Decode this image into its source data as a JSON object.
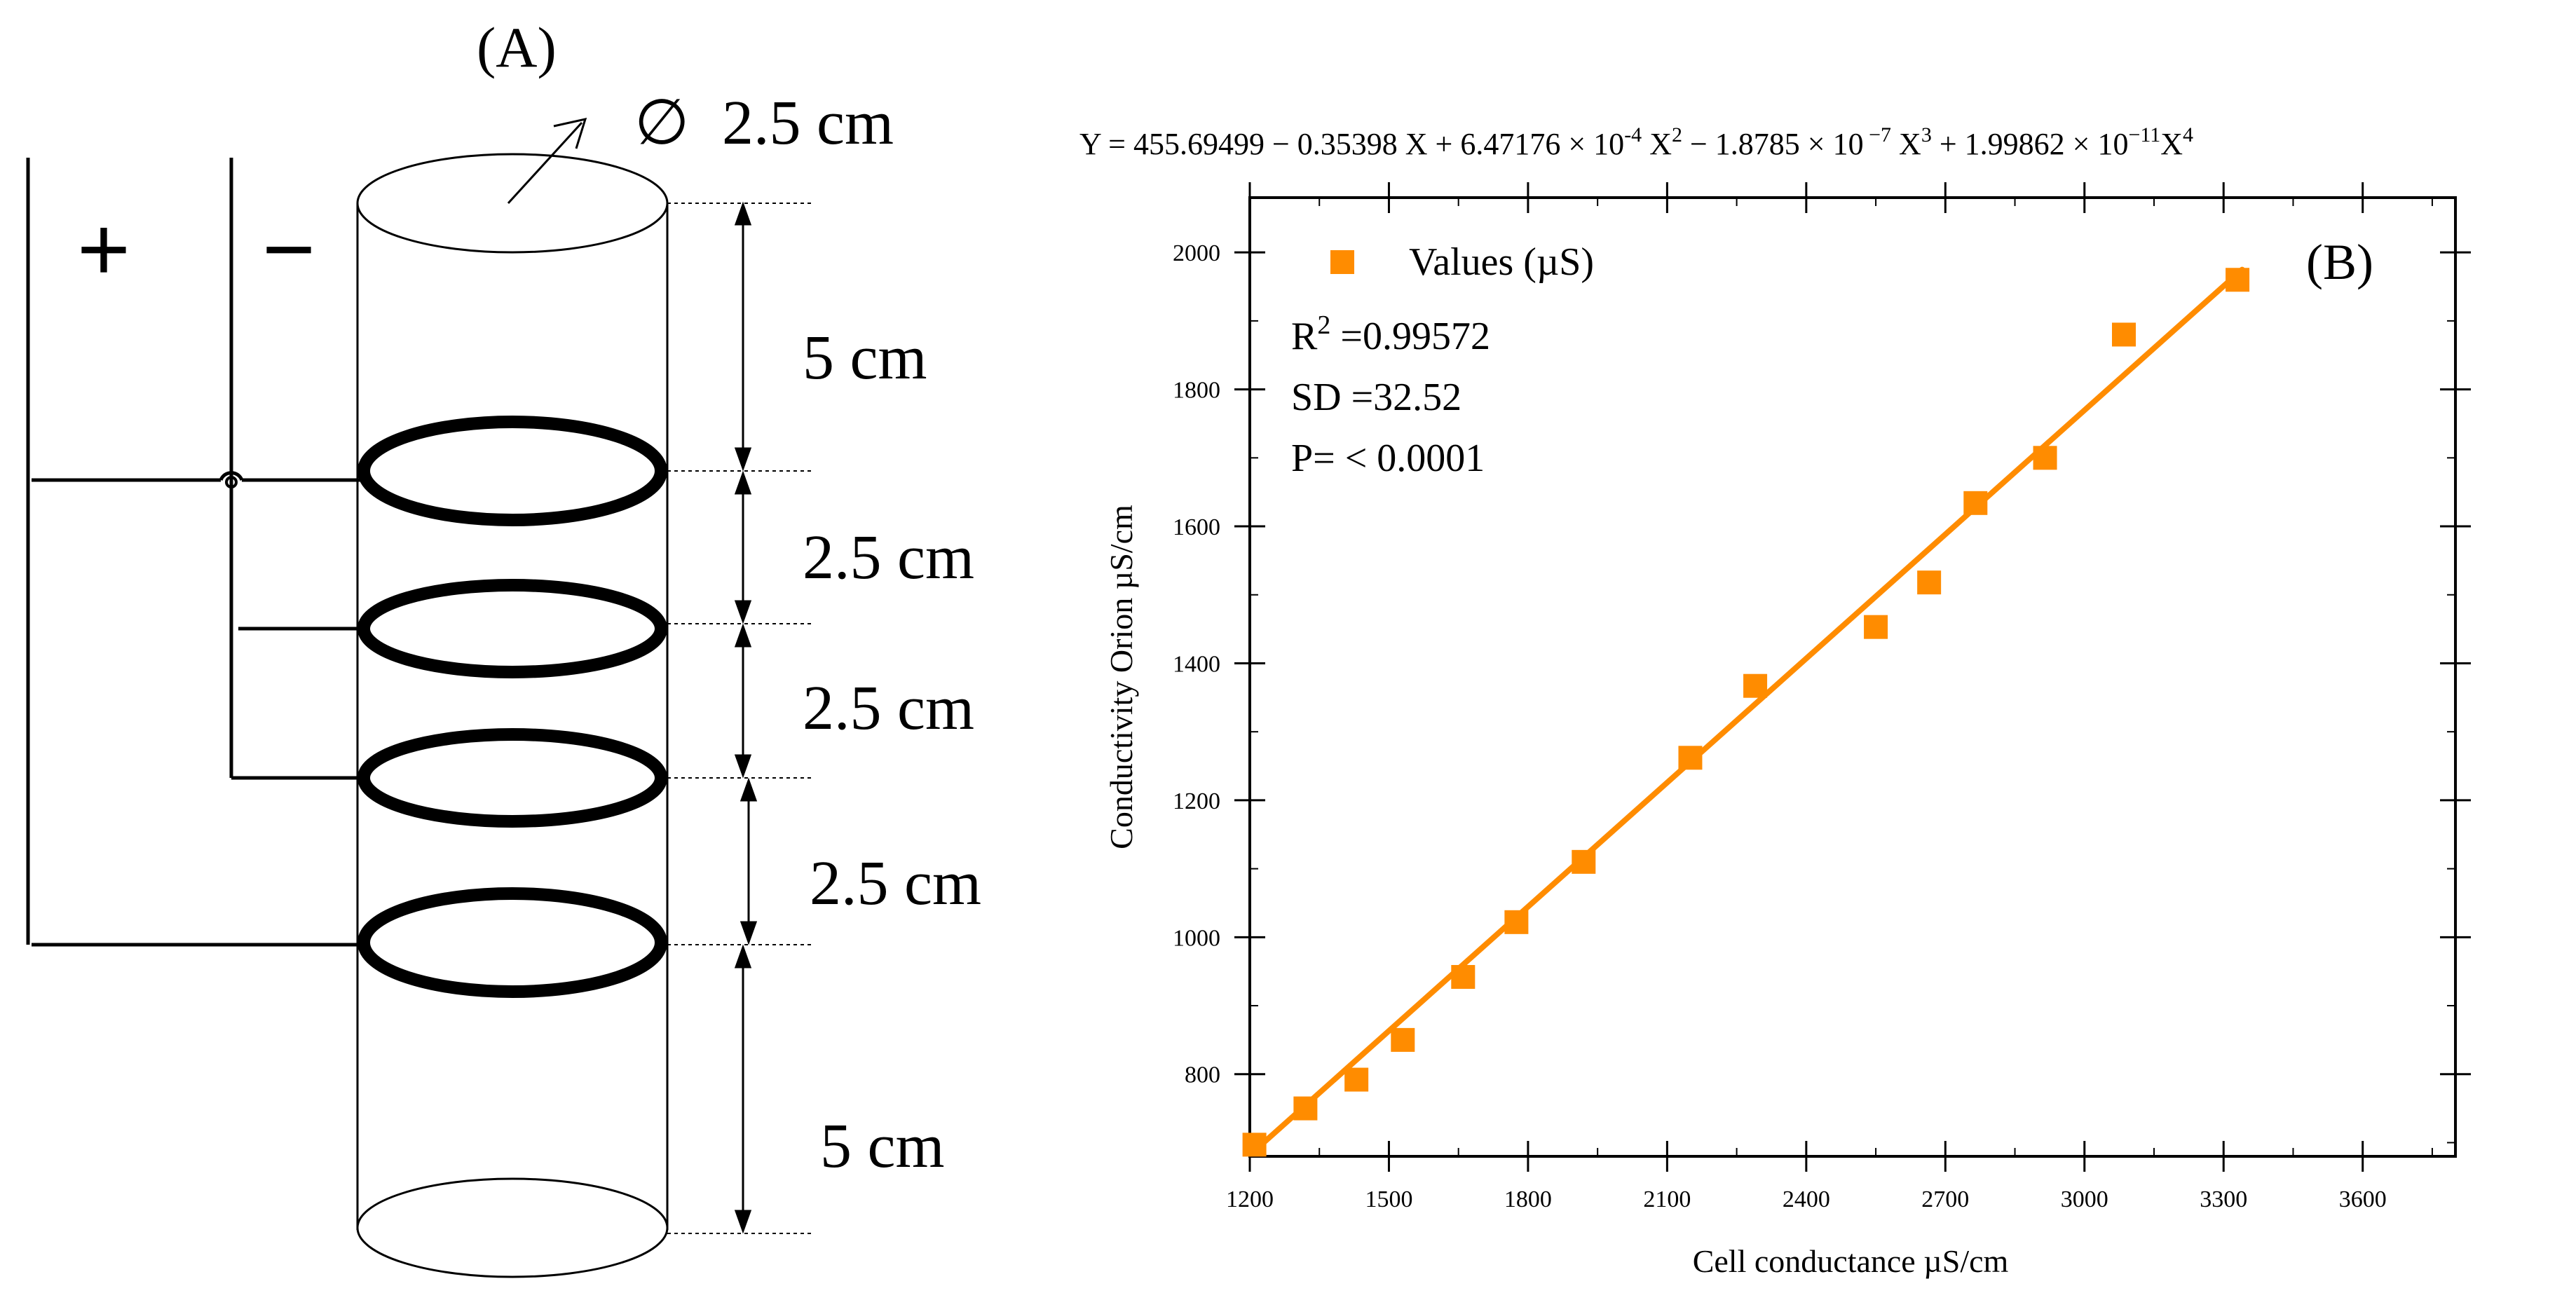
{
  "panel_a": {
    "label": "(A)",
    "diameter": "2.5 cm",
    "diameter_symbol": "∅",
    "plus": "+",
    "minus": "−",
    "spacings": [
      "5 cm",
      "2.5 cm",
      "2.5 cm",
      "2.5 cm",
      "5 cm"
    ]
  },
  "chart_data": {
    "type": "scatter",
    "panel_label": "(B)",
    "equation": {
      "lead": "Y = 455.69499 − 0.35398 X + 6.47176 × 10",
      "e1": "-4",
      "mid1": " X",
      "p2": "2",
      "mid2": "  − 1.8785 × 10",
      "e2": " −7",
      "mid3": " X",
      "p3": "3",
      "mid4": " + 1.99862 × 10",
      "e3": "−11",
      "mid5": "X",
      "p4": "4"
    },
    "xlabel": "Cell conductance µS/cm",
    "ylabel": "Conductivity Orion µS/cm",
    "xlim": [
      1200,
      3800
    ],
    "ylim": [
      680,
      2080
    ],
    "xticks": [
      1200,
      1500,
      1800,
      2100,
      2400,
      2700,
      3000,
      3300,
      3600
    ],
    "yticks": [
      800,
      1000,
      1200,
      1400,
      1600,
      1800,
      2000
    ],
    "legend": "Values  (µS)",
    "legend_position": "top-left",
    "stats": {
      "r2_label": "R",
      "r2_sup": "2",
      "r2_value": " =0.99572",
      "sd": "SD =32.52",
      "p": "P= < 0.0001"
    },
    "colors": {
      "series": "#FF8C00",
      "fit": "#FF8C00",
      "axis": "#000000"
    },
    "series": [
      {
        "name": "Values (µS)",
        "x": [
          1210,
          1320,
          1430,
          1530,
          1660,
          1775,
          1920,
          2150,
          2290,
          2550,
          2665,
          2765,
          2915,
          3085,
          3330
        ],
        "y": [
          697,
          750,
          792,
          850,
          942,
          1022,
          1110,
          1262,
          1367,
          1453,
          1518,
          1634,
          1700,
          1880,
          1960
        ]
      }
    ],
    "fit_line": {
      "x": [
        1210,
        3340
      ],
      "y": [
        688,
        1975
      ]
    }
  }
}
